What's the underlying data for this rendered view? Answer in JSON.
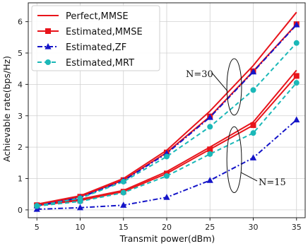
{
  "chart_data": {
    "type": "line",
    "title": "",
    "xlabel": "Transmit power(dBm)",
    "ylabel": "Achievable rate(bps/Hz)",
    "xlim": [
      4,
      36
    ],
    "ylim": [
      -0.25,
      6.6
    ],
    "xticks": [
      5,
      10,
      15,
      20,
      25,
      30,
      35
    ],
    "yticks": [
      0,
      1,
      2,
      3,
      4,
      5,
      6
    ],
    "grid": true,
    "legend_placement": "top-left",
    "x": [
      5,
      10,
      15,
      20,
      25,
      30,
      35
    ],
    "series": [
      {
        "name": "Perfect,MMSE",
        "group": "N=30",
        "color": "#e8141b",
        "dash": "solid",
        "marker": "none",
        "values": [
          0.18,
          0.45,
          1.0,
          1.9,
          3.15,
          4.6,
          6.3
        ]
      },
      {
        "name": "Perfect,MMSE",
        "group": "N=15",
        "color": "#e8141b",
        "dash": "solid",
        "marker": "none",
        "values": [
          0.15,
          0.34,
          0.62,
          1.22,
          2.0,
          2.8,
          4.45
        ]
      },
      {
        "name": "Estimated,MMSE",
        "group": "N=30",
        "color": "#e8141b",
        "dash": "solid",
        "marker": "square",
        "values": [
          0.15,
          0.42,
          0.95,
          1.83,
          2.98,
          4.42,
          5.92
        ]
      },
      {
        "name": "Estimated,MMSE",
        "group": "N=15",
        "color": "#e8141b",
        "dash": "solid",
        "marker": "square",
        "values": [
          0.14,
          0.3,
          0.58,
          1.16,
          1.93,
          2.7,
          4.27
        ]
      },
      {
        "name": "Estimated,ZF",
        "group": "N=30",
        "color": "#1515c8",
        "dash": "dashdot",
        "marker": "triangle",
        "values": [
          0.13,
          0.39,
          0.93,
          1.8,
          2.95,
          4.4,
          5.9
        ]
      },
      {
        "name": "Estimated,ZF",
        "group": "N=15",
        "color": "#1515c8",
        "dash": "dashdot",
        "marker": "triangle",
        "values": [
          0.02,
          0.07,
          0.15,
          0.4,
          0.94,
          1.66,
          2.87
        ]
      },
      {
        "name": "Estimated,MRT",
        "group": "N=30",
        "color": "#1bb8b8",
        "dash": "dashed",
        "marker": "circle",
        "values": [
          0.13,
          0.37,
          0.9,
          1.7,
          2.65,
          3.82,
          5.32
        ]
      },
      {
        "name": "Estimated,MRT",
        "group": "N=15",
        "color": "#1bb8b8",
        "dash": "dashed",
        "marker": "circle",
        "values": [
          0.12,
          0.27,
          0.55,
          1.08,
          1.78,
          2.45,
          4.05
        ]
      }
    ],
    "legend": [
      {
        "label": "Perfect,MMSE",
        "color": "#e8141b",
        "dash": "solid",
        "marker": "none"
      },
      {
        "label": "Estimated,MMSE",
        "color": "#e8141b",
        "dash": "solid",
        "marker": "square"
      },
      {
        "label": "Estimated,ZF",
        "color": "#1515c8",
        "dash": "dashdot",
        "marker": "triangle"
      },
      {
        "label": "Estimated,MRT",
        "color": "#1bb8b8",
        "dash": "dashed",
        "marker": "circle"
      }
    ],
    "annotations": [
      {
        "text": "N=30",
        "ellipse_center": [
          27.8,
          3.92
        ],
        "ellipse_radii": [
          0.85,
          0.9
        ]
      },
      {
        "text": "N=15",
        "ellipse_center": [
          27.8,
          1.6
        ],
        "ellipse_radii": [
          0.85,
          1.05
        ]
      }
    ]
  }
}
